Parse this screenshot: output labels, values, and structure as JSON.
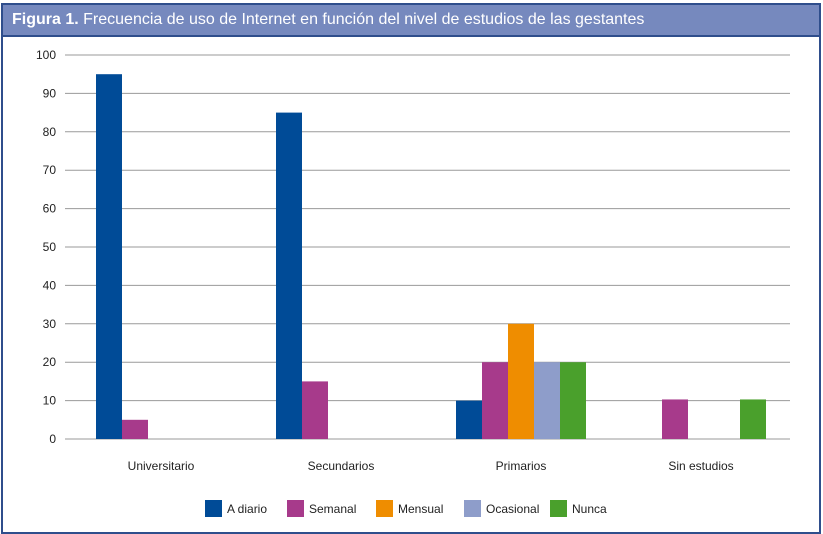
{
  "chart_data": {
    "type": "bar",
    "title_label": "Figura 1.",
    "title": "Frecuencia de uso de Internet en función del nivel de estudios de las gestantes",
    "categories": [
      "Universitario",
      "Secundarios",
      "Primarios",
      "Sin estudios"
    ],
    "series": [
      {
        "name": "A diario",
        "color": "#004b97",
        "values": [
          95,
          85,
          10,
          0
        ]
      },
      {
        "name": "Semanal",
        "color": "#a73a8b",
        "values": [
          5,
          15,
          20,
          10.3
        ]
      },
      {
        "name": "Mensual",
        "color": "#ef8d00",
        "values": [
          0,
          0,
          30,
          0
        ]
      },
      {
        "name": "Ocasional",
        "color": "#8e9dca",
        "values": [
          0,
          0,
          20,
          0
        ]
      },
      {
        "name": "Nunca",
        "color": "#4aa02c",
        "values": [
          0,
          0,
          20,
          10.3
        ]
      }
    ],
    "ylim": [
      0,
      100
    ],
    "yticks": [
      0,
      10,
      20,
      30,
      40,
      50,
      60,
      70,
      80,
      90,
      100
    ],
    "grid": true,
    "legend": "bottom",
    "header_color": "#7689be",
    "border_color": "#2f4e8c"
  }
}
